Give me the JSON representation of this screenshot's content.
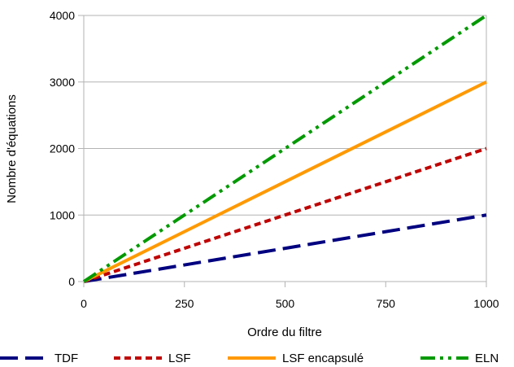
{
  "chart_data": {
    "type": "line",
    "xlabel": "Ordre du filtre",
    "ylabel": "Nombre d'équations",
    "xlim": [
      0,
      1000
    ],
    "ylim": [
      0,
      4000
    ],
    "x_ticks": [
      "0",
      "250",
      "500",
      "750",
      "1000"
    ],
    "y_ticks": [
      "0",
      "1000",
      "2000",
      "3000",
      "4000"
    ],
    "grid": "horizontal",
    "legend_position": "bottom",
    "x": [
      0,
      1000
    ],
    "series": [
      {
        "name": "TDF",
        "values": [
          0,
          1000
        ],
        "color": "#000080",
        "style": "dashed"
      },
      {
        "name": "LSF",
        "values": [
          0,
          2000
        ],
        "color": "#c00000",
        "style": "dotted"
      },
      {
        "name": "LSF encapsulé",
        "values": [
          0,
          3000
        ],
        "color": "#ff9900",
        "style": "solid"
      },
      {
        "name": "ELN",
        "values": [
          0,
          4000
        ],
        "color": "#009900",
        "style": "dash-dot-dot"
      }
    ]
  }
}
